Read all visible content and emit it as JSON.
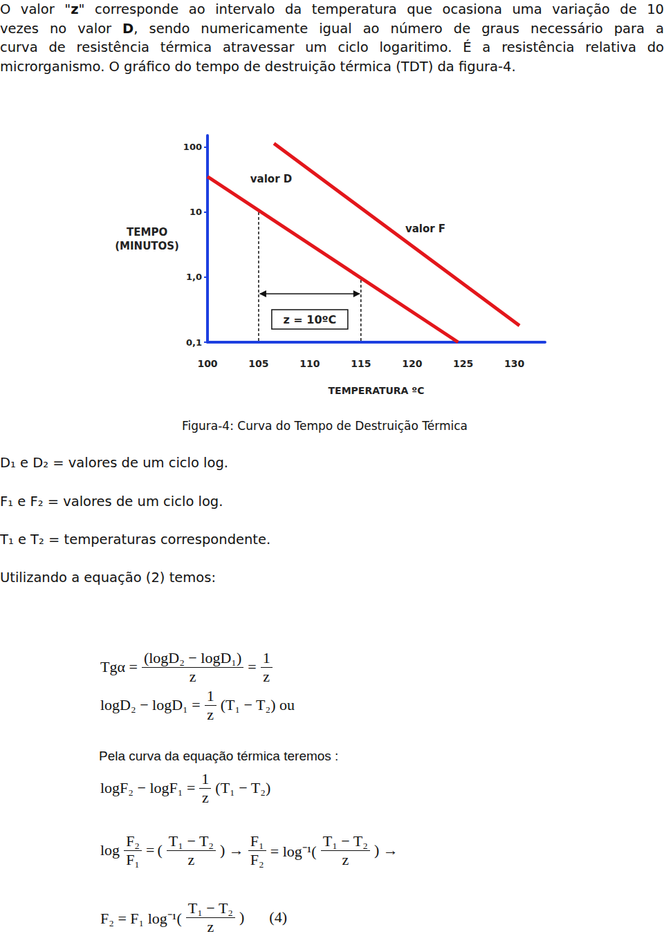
{
  "paragraph": [
    [
      "O valor \"",
      {
        "b": "z"
      },
      "\" corresponde ao intervalo da temperatura que ocasiona uma variação de 10"
    ],
    [
      "vezes no valor ",
      {
        "b": "D"
      },
      ", sendo numericamente igual ao número de graus necessário para a"
    ],
    [
      "curva de resistência térmica atravessar um ciclo logaritimo. É a resistência relativa do"
    ],
    [
      "microrganismo. O gráfico do tempo de destruição térmica (TDT) da figura-4."
    ]
  ],
  "chart_data": {
    "type": "line",
    "log": "y",
    "grid": false,
    "x_label": "TEMPERATURA ºC",
    "y_label": "TEMPO\n(MINUTOS)",
    "xlim": [
      100,
      133
    ],
    "xticks": [
      100,
      105,
      110,
      115,
      120,
      125,
      130
    ],
    "ylim": [
      0.1,
      150
    ],
    "yticks": [
      {
        "value": 0.1,
        "label": "0,1"
      },
      {
        "value": 1,
        "label": "1,0"
      },
      10,
      100
    ],
    "series": [
      {
        "name": "valor D",
        "color": "#e3161b",
        "x": [
          100,
          124.5
        ],
        "values": [
          35,
          0.1
        ]
      },
      {
        "name": "valor F",
        "color": "#e3161b",
        "x": [
          106.5,
          130.5
        ],
        "values": [
          113,
          0.18
        ]
      }
    ],
    "annotation": {
      "text": "z = 10ºC",
      "x": [
        105,
        115
      ],
      "series": "valor D"
    }
  },
  "caption": "Figura-4: Curva do Tempo de Destruição Térmica",
  "definitions": [
    "D₁ e D₂ = valores de um ciclo log.",
    "F₁ e F₂ = valores de um ciclo log.",
    "T₁ e T₂ = temperaturas correspondente.",
    "Utilizando a equação (2) temos:"
  ],
  "equations": [
    {
      "tokens": [
        "Tgα =",
        {
          "num": "(logD₂ − logD₁)",
          "den": "z"
        },
        "=",
        {
          "num": "1",
          "den": "z"
        }
      ]
    },
    {
      "tokens": [
        "logD₂ − logD₁ =",
        {
          "num": "1",
          "den": "z"
        },
        "(T₁ − T₂) ou"
      ]
    },
    {
      "heading": "Pela curva da equação térmica teremos :"
    },
    {
      "tokens": [
        "logF₂ − logF₁ =",
        {
          "num": "1",
          "den": "z"
        },
        "(T₁ − T₂)"
      ]
    },
    {
      "tokens": [
        "log",
        {
          "num": "F₂",
          "den": "F₁"
        },
        "=",
        "(",
        {
          "num": "T₁ − T₂",
          "den": "z"
        },
        ") →",
        {
          "num": "F₁",
          "den": "F₂"
        },
        "= log⁻¹(",
        {
          "num": "T₁ − T₂",
          "den": "z"
        },
        ") →"
      ]
    },
    {
      "tokens": [
        "F₂ = F₁ log⁻¹(",
        {
          "num": "T₁ − T₂",
          "den": "z"
        },
        ")"
      ],
      "number": "(4)"
    }
  ]
}
